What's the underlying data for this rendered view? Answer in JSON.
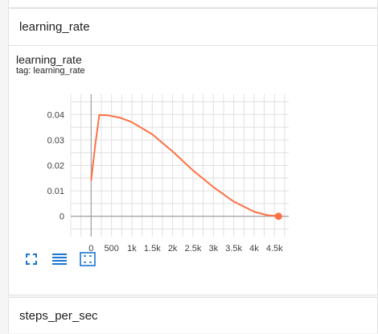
{
  "sections": {
    "main_title": "learning_rate",
    "next_title": "steps_per_sec"
  },
  "chart": {
    "title": "learning_rate",
    "tag": "tag: learning_rate",
    "line_color": "#ff7043"
  },
  "toolbar": {
    "icons": [
      "fullscreen-icon",
      "toggle-log-scale-icon",
      "fit-domain-icon"
    ],
    "accent": "#1976d2"
  },
  "chart_data": {
    "type": "line",
    "title": "",
    "xlabel": "",
    "ylabel": "",
    "xlim": [
      -500,
      4850
    ],
    "ylim": [
      -0.008,
      0.048
    ],
    "x_ticks": [
      "0",
      "500",
      "1k",
      "1.5k",
      "2k",
      "2.5k",
      "3k",
      "3.5k",
      "4k",
      "4.5k"
    ],
    "x_tick_values": [
      0,
      500,
      1000,
      1500,
      2000,
      2500,
      3000,
      3500,
      4000,
      4500
    ],
    "y_ticks": [
      "0",
      "0.01",
      "0.02",
      "0.03",
      "0.04"
    ],
    "y_tick_values": [
      0,
      0.01,
      0.02,
      0.03,
      0.04
    ],
    "grid": true,
    "series": [
      {
        "color": "#ff7043",
        "x": [
          0,
          100,
          200,
          400,
          700,
          1000,
          1500,
          2000,
          2500,
          3000,
          3500,
          4000,
          4300,
          4600
        ],
        "y": [
          0.014,
          0.028,
          0.0398,
          0.0397,
          0.0388,
          0.037,
          0.0322,
          0.0255,
          0.018,
          0.0115,
          0.0058,
          0.0018,
          0.0005,
          0.0
        ]
      }
    ]
  }
}
